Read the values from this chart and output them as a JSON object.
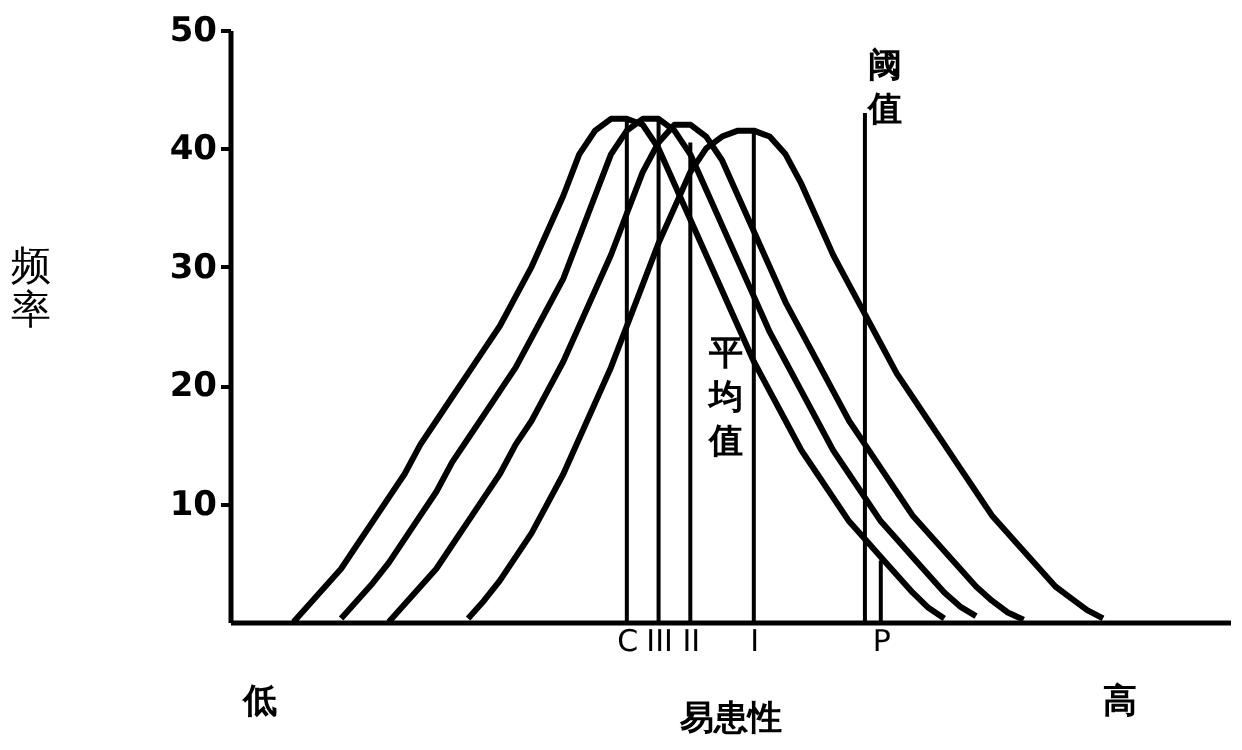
{
  "chart_data": {
    "type": "line",
    "xlabel": "易患性",
    "ylabel": "频率",
    "ylim": [
      0,
      50
    ],
    "yticks": [
      10,
      20,
      30,
      40,
      50
    ],
    "grid": false,
    "marker": "none",
    "line_style": "solid",
    "categories": [
      null,
      null,
      null,
      null,
      null,
      null,
      null,
      null,
      null,
      null,
      null,
      null,
      null,
      null,
      null,
      null,
      null,
      null,
      null,
      null,
      null,
      null,
      null,
      null,
      null,
      "C",
      null,
      "III",
      null,
      "II",
      null,
      null,
      null,
      "I",
      null,
      null,
      null,
      null,
      null,
      null,
      null,
      "P",
      null,
      null,
      null,
      null,
      null,
      null,
      null,
      null,
      null,
      null,
      null,
      null,
      null,
      null,
      null,
      null,
      null,
      null,
      null,
      null,
      null,
      null
    ],
    "series": [
      {
        "color": "#000000",
        "values": [
          null,
          null,
          null,
          null,
          0,
          1.5,
          3,
          4.5,
          6.5,
          8.5,
          10.5,
          12.5,
          15,
          17,
          19,
          21,
          23,
          25,
          27.5,
          30,
          33,
          36,
          39.5,
          41.5,
          42.5,
          42.5,
          42,
          40,
          37,
          34,
          31,
          28,
          25,
          22,
          19.5,
          17,
          14.5,
          12.5,
          10.5,
          8.5,
          7,
          5.5,
          4,
          2.5,
          1.2,
          0.3,
          null,
          null,
          null,
          null,
          null,
          null,
          null,
          null,
          null,
          null,
          null,
          null,
          null,
          null,
          null,
          null,
          null,
          null
        ]
      },
      {
        "color": "#000000",
        "values": [
          null,
          null,
          null,
          null,
          null,
          null,
          null,
          0.3,
          1.8,
          3.3,
          5,
          7,
          9,
          11,
          13.5,
          15.5,
          17.5,
          19.5,
          21.5,
          24,
          26.5,
          29,
          32.5,
          36,
          39.5,
          41.5,
          42.5,
          42.5,
          41.5,
          39.5,
          36.5,
          33.5,
          30.5,
          27.5,
          24.5,
          22,
          19.5,
          17,
          14.5,
          12.5,
          10.5,
          8.5,
          7,
          5.5,
          4,
          2.5,
          1.3,
          0.5,
          null,
          null,
          null,
          null,
          null,
          null,
          null,
          null,
          null,
          null,
          null,
          null,
          null,
          null,
          null,
          null
        ]
      },
      {
        "color": "#000000",
        "values": [
          null,
          null,
          null,
          null,
          null,
          null,
          null,
          null,
          null,
          null,
          0,
          1.5,
          3,
          4.5,
          6.5,
          8.5,
          10.5,
          12.5,
          15,
          17,
          19.5,
          22,
          25,
          28,
          31,
          34.5,
          38,
          40.5,
          42,
          42,
          41,
          39,
          36,
          33,
          30,
          27,
          24.5,
          22,
          19.5,
          17,
          15,
          13,
          11,
          9,
          7.5,
          6,
          4.5,
          3,
          1.8,
          0.8,
          0.2,
          null,
          null,
          null,
          null,
          null,
          null,
          null,
          null,
          null,
          null,
          null,
          null,
          null
        ]
      },
      {
        "color": "#000000",
        "values": [
          null,
          null,
          null,
          null,
          null,
          null,
          null,
          null,
          null,
          null,
          null,
          null,
          null,
          null,
          null,
          0.3,
          1.8,
          3.5,
          5.5,
          7.5,
          10,
          12.5,
          15.5,
          18.5,
          21.5,
          25,
          28.5,
          32,
          35,
          38,
          40,
          41,
          41.5,
          41.5,
          41,
          39.5,
          37,
          34,
          31,
          28.5,
          26,
          23.5,
          21,
          19,
          17,
          15,
          13,
          11,
          9,
          7.5,
          6,
          4.5,
          3,
          2,
          1,
          0.3,
          null,
          null,
          null,
          null,
          null,
          null,
          null,
          null
        ]
      },
      {
        "type": "bar",
        "color": "#000000",
        "values": [
          null,
          null,
          null,
          null,
          null,
          null,
          null,
          null,
          null,
          null,
          null,
          null,
          null,
          null,
          null,
          null,
          null,
          null,
          null,
          null,
          null,
          null,
          null,
          null,
          null,
          42.5,
          null,
          42.5,
          null,
          40.5,
          null,
          null,
          null,
          41.5,
          null,
          null,
          null,
          null,
          null,
          null,
          43,
          5.2,
          null,
          null,
          null,
          null,
          null,
          null,
          null,
          null,
          null,
          null,
          null,
          null,
          null,
          null,
          null,
          null,
          null,
          null,
          null,
          null,
          null,
          null
        ]
      }
    ],
    "annotations": [
      "平均值",
      "阈值",
      "低",
      "高"
    ]
  }
}
